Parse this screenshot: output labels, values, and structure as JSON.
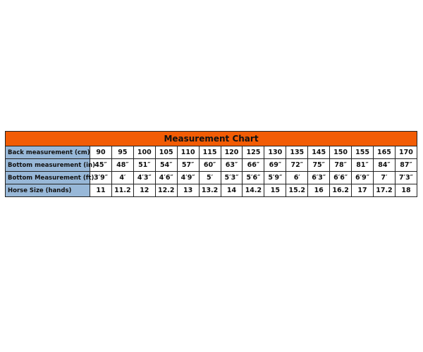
{
  "table": {
    "title": "Measurement Chart",
    "rows": [
      {
        "label": "Back measurement (cm)",
        "cells": [
          "90",
          "95",
          "100",
          "105",
          "110",
          "115",
          "120",
          "125",
          "130",
          "135",
          "145",
          "150",
          "155",
          "165",
          "170"
        ]
      },
      {
        "label": "Bottom measurement (in)",
        "cells": [
          "45″",
          "48″",
          "51″",
          "54″",
          "57″",
          "60″",
          "63″",
          "66″",
          "69″",
          "72″",
          "75″",
          "78″",
          "81″",
          "84″",
          "87″"
        ]
      },
      {
        "label": "Bottom Measurement (ft)",
        "cells": [
          "3′9″",
          "4′",
          "4′3″",
          "4′6″",
          "4′9″",
          "5′",
          "5′3″",
          "5′6″",
          "5′9″",
          "6′",
          "6′3″",
          "6′6″",
          "6′9″",
          "7′",
          "7′3″"
        ]
      },
      {
        "label": "Horse Size (hands)",
        "cells": [
          "11",
          "11.2",
          "12",
          "12.2",
          "13",
          "13.2",
          "14",
          "14.2",
          "15",
          "15.2",
          "16",
          "16.2",
          "17",
          "17.2",
          "18"
        ]
      }
    ]
  }
}
